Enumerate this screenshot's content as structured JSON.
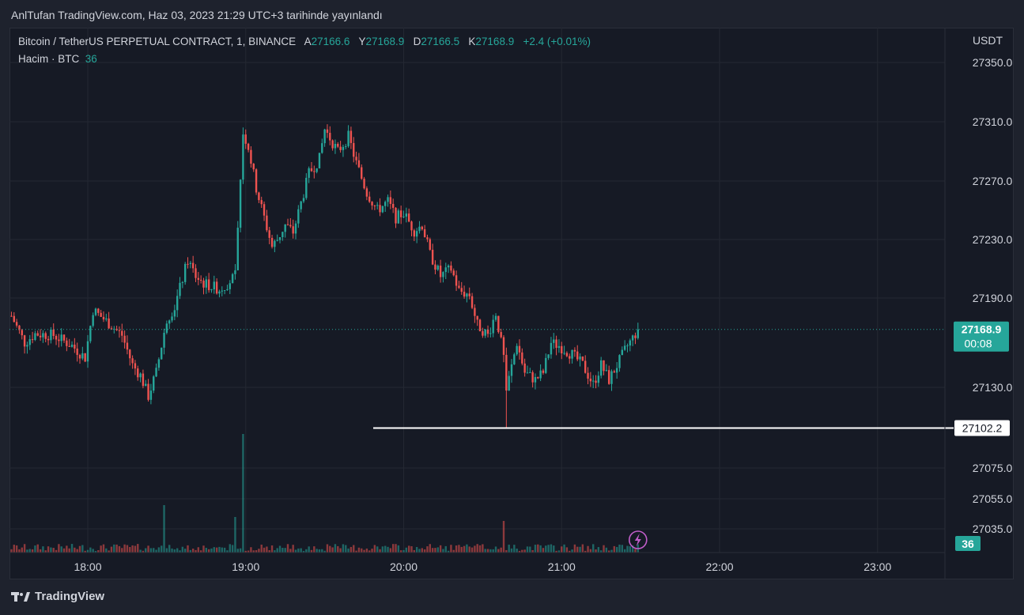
{
  "header": {
    "published": "AnlTufan TradingView.com, Haz 03, 2023 21:29 UTC+3 tarihinde yayınlandı"
  },
  "legend": {
    "symbol": "Bitcoin / TetherUS PERPETUAL CONTRACT, 1, BINANCE",
    "open_label": "A",
    "open": "27166.6",
    "high_label": "Y",
    "high": "27168.9",
    "low_label": "D",
    "low": "27166.5",
    "close_label": "K",
    "close": "27168.9",
    "change": "+2.4 (+0.01%)",
    "volume_label": "Hacim · BTC",
    "volume": "36"
  },
  "footer": {
    "brand": "TradingView",
    "logo_icon": "tradingview-logo-icon"
  },
  "colors": {
    "up": "#26a69a",
    "down": "#ef5350",
    "background": "#161a25",
    "grid": "#242832"
  },
  "chart_data": {
    "type": "candlestick",
    "axis_currency": "USDT",
    "y_ticks": [
      27350.0,
      27310.0,
      27270.0,
      27230.0,
      27190.0,
      27130.0,
      27075.0,
      27055.0,
      27035.0
    ],
    "x_ticks": [
      "18:00",
      "19:00",
      "20:00",
      "21:00",
      "22:00",
      "23:00"
    ],
    "last_price": {
      "value": 27168.9,
      "label": "27168.9",
      "countdown": "00:08"
    },
    "horizontal_line": {
      "value": 27102.2,
      "label": "27102.2"
    },
    "volume_last": "36",
    "close_path": [
      [
        "17:31",
        27178
      ],
      [
        "17:36",
        27160
      ],
      [
        "17:40",
        27166
      ],
      [
        "17:47",
        27165
      ],
      [
        "17:54",
        27158
      ],
      [
        "17:59",
        27150
      ],
      [
        "18:02",
        27182
      ],
      [
        "18:08",
        27173
      ],
      [
        "18:13",
        27165
      ],
      [
        "18:17",
        27145
      ],
      [
        "18:20",
        27138
      ],
      [
        "18:23",
        27124
      ],
      [
        "18:26",
        27140
      ],
      [
        "18:30",
        27176
      ],
      [
        "18:33",
        27184
      ],
      [
        "18:38",
        27216
      ],
      [
        "18:41",
        27205
      ],
      [
        "18:44",
        27200
      ],
      [
        "18:50",
        27196
      ],
      [
        "18:53",
        27200
      ],
      [
        "18:56",
        27205
      ],
      [
        "18:58",
        27270
      ],
      [
        "18:59",
        27303
      ],
      [
        "19:01",
        27293
      ],
      [
        "19:04",
        27265
      ],
      [
        "19:07",
        27245
      ],
      [
        "19:10",
        27225
      ],
      [
        "19:12",
        27230
      ],
      [
        "19:15",
        27240
      ],
      [
        "19:18",
        27235
      ],
      [
        "19:21",
        27255
      ],
      [
        "19:24",
        27275
      ],
      [
        "19:28",
        27285
      ],
      [
        "19:30",
        27305
      ],
      [
        "19:35",
        27290
      ],
      [
        "19:39",
        27300
      ],
      [
        "19:42",
        27282
      ],
      [
        "19:46",
        27262
      ],
      [
        "19:50",
        27250
      ],
      [
        "19:54",
        27256
      ],
      [
        "19:57",
        27245
      ],
      [
        "20:00",
        27248
      ],
      [
        "20:04",
        27236
      ],
      [
        "20:07",
        27240
      ],
      [
        "20:10",
        27220
      ],
      [
        "20:14",
        27205
      ],
      [
        "20:18",
        27210
      ],
      [
        "20:21",
        27195
      ],
      [
        "20:25",
        27192
      ],
      [
        "20:28",
        27172
      ],
      [
        "20:32",
        27165
      ],
      [
        "20:35",
        27180
      ],
      [
        "20:38",
        27150
      ],
      [
        "20:39",
        27128
      ],
      [
        "20:43",
        27160
      ],
      [
        "20:46",
        27140
      ],
      [
        "20:50",
        27135
      ],
      [
        "20:53",
        27140
      ],
      [
        "20:56",
        27160
      ],
      [
        "20:59",
        27158
      ],
      [
        "21:04",
        27152
      ],
      [
        "21:08",
        27145
      ],
      [
        "21:12",
        27132
      ],
      [
        "21:15",
        27145
      ],
      [
        "21:18",
        27135
      ],
      [
        "21:22",
        27148
      ],
      [
        "21:25",
        27158
      ],
      [
        "21:27",
        27163
      ],
      [
        "21:29",
        27168.9
      ]
    ],
    "volume_spikes": [
      [
        "18:29",
        60
      ],
      [
        "18:56",
        45
      ],
      [
        "18:59",
        150
      ],
      [
        "20:38",
        40
      ]
    ]
  }
}
